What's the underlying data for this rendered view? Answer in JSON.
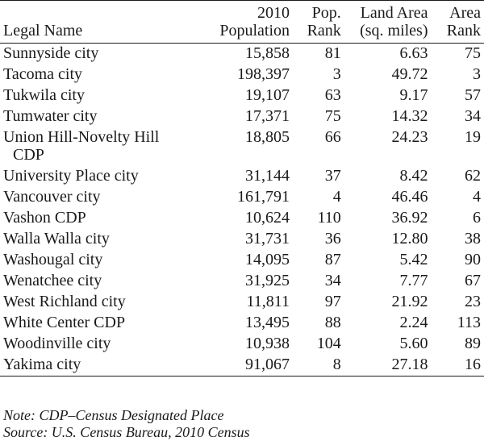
{
  "headers": {
    "legal_name": "Legal Name",
    "population_line1": "2010",
    "population_line2": "Population",
    "pop_rank_line1": "Pop.",
    "pop_rank_line2": "Rank",
    "land_area_line1": "Land Area",
    "land_area_line2": "(sq. miles)",
    "area_rank_line1": "Area",
    "area_rank_line2": "Rank"
  },
  "rows": [
    {
      "name": "Sunnyside city",
      "name2": "",
      "population": "15,858",
      "pop_rank": "81",
      "land_area": "6.63",
      "area_rank": "75"
    },
    {
      "name": "Tacoma city",
      "name2": "",
      "population": "198,397",
      "pop_rank": "3",
      "land_area": "49.72",
      "area_rank": "3"
    },
    {
      "name": "Tukwila city",
      "name2": "",
      "population": "19,107",
      "pop_rank": "63",
      "land_area": "9.17",
      "area_rank": "57"
    },
    {
      "name": "Tumwater city",
      "name2": "",
      "population": "17,371",
      "pop_rank": "75",
      "land_area": "14.32",
      "area_rank": "34"
    },
    {
      "name": "Union Hill-Novelty Hill",
      "name2": "CDP",
      "population": "18,805",
      "pop_rank": "66",
      "land_area": "24.23",
      "area_rank": "19"
    },
    {
      "name": "University Place city",
      "name2": "",
      "population": "31,144",
      "pop_rank": "37",
      "land_area": "8.42",
      "area_rank": "62"
    },
    {
      "name": "Vancouver city",
      "name2": "",
      "population": "161,791",
      "pop_rank": "4",
      "land_area": "46.46",
      "area_rank": "4"
    },
    {
      "name": "Vashon CDP",
      "name2": "",
      "population": "10,624",
      "pop_rank": "110",
      "land_area": "36.92",
      "area_rank": "6"
    },
    {
      "name": "Walla Walla city",
      "name2": "",
      "population": "31,731",
      "pop_rank": "36",
      "land_area": "12.80",
      "area_rank": "38"
    },
    {
      "name": "Washougal city",
      "name2": "",
      "population": "14,095",
      "pop_rank": "87",
      "land_area": "5.42",
      "area_rank": "90"
    },
    {
      "name": "Wenatchee city",
      "name2": "",
      "population": "31,925",
      "pop_rank": "34",
      "land_area": "7.77",
      "area_rank": "67"
    },
    {
      "name": "West Richland city",
      "name2": "",
      "population": "11,811",
      "pop_rank": "97",
      "land_area": "21.92",
      "area_rank": "23"
    },
    {
      "name": "White Center CDP",
      "name2": "",
      "population": "13,495",
      "pop_rank": "88",
      "land_area": "2.24",
      "area_rank": "113"
    },
    {
      "name": "Woodinville city",
      "name2": "",
      "population": "10,938",
      "pop_rank": "104",
      "land_area": "5.60",
      "area_rank": "89"
    },
    {
      "name": "Yakima city",
      "name2": "",
      "population": "91,067",
      "pop_rank": "8",
      "land_area": "27.18",
      "area_rank": "16"
    }
  ],
  "notes": {
    "note": "Note: CDP–Census Designated Place",
    "source": "Source: U.S. Census Bureau, 2010 Census"
  }
}
